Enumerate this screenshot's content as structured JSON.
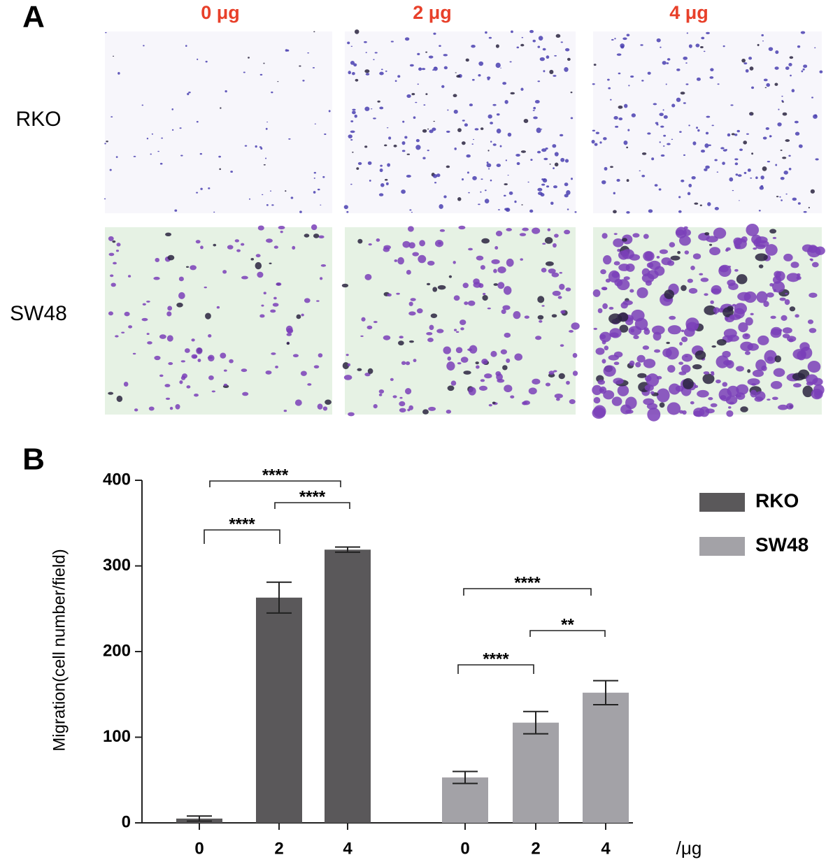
{
  "panel_a": {
    "label": "A",
    "columns": [
      "0 μg",
      "2 μg",
      "4 μg"
    ],
    "rows": [
      "RKO",
      "SW48"
    ]
  },
  "chart_data": {
    "type": "bar",
    "panel_label": "B",
    "y_label": "Migration(cell number/field)",
    "x_unit": "/μg",
    "categories": [
      "0",
      "2",
      "4"
    ],
    "series": [
      {
        "name": "RKO",
        "color": "#5a585a",
        "values": [
          5,
          263,
          319
        ],
        "errors": [
          3,
          18,
          3
        ]
      },
      {
        "name": "SW48",
        "color": "#a3a2a7",
        "values": [
          53,
          117,
          152
        ],
        "errors": [
          7,
          13,
          14
        ]
      }
    ],
    "ylim": [
      0,
      400
    ],
    "yticks": [
      0,
      100,
      200,
      300,
      400
    ],
    "significance": [
      "****",
      "****",
      "****",
      "****",
      "**",
      "****"
    ],
    "legend": "upper right"
  }
}
